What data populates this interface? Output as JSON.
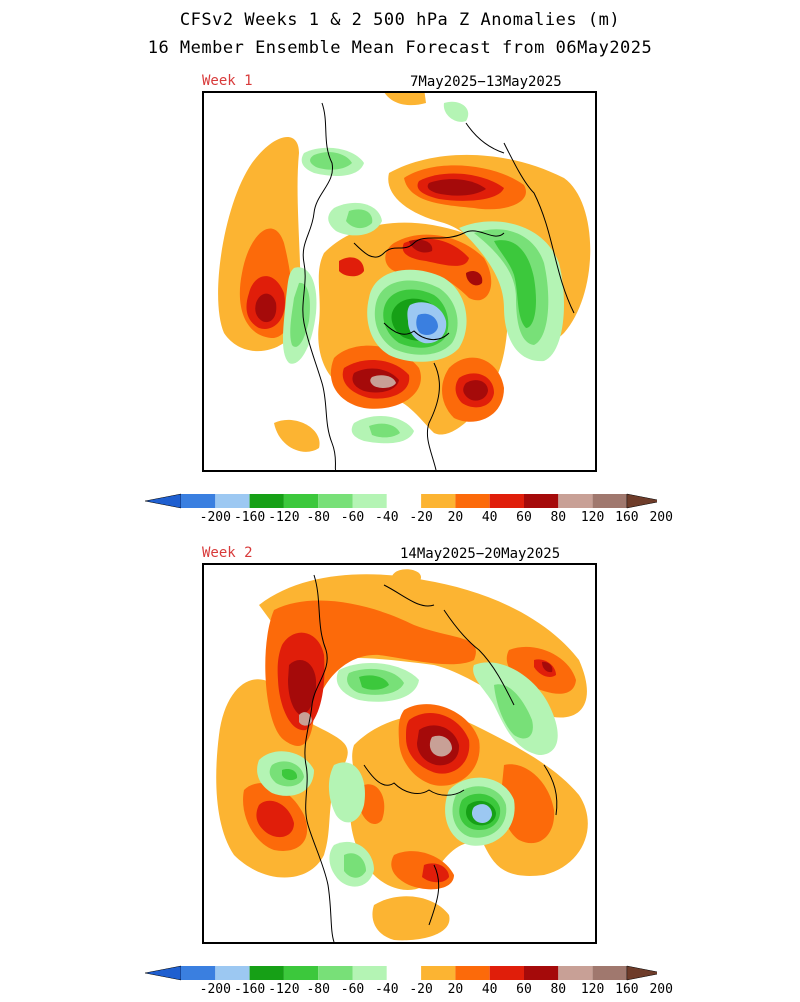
{
  "title_line1": "CFSv2 Weeks 1 & 2 500 hPa Z Anomalies (m)",
  "title_line2": "16 Member Ensemble Mean Forecast from 06May2025",
  "panels": [
    {
      "label": "Week 1",
      "dates": "7May2025−13May2025"
    },
    {
      "label": "Week 2",
      "dates": "14May2025−20May2025"
    }
  ],
  "colorbar": {
    "labels": [
      "-200",
      "-160",
      "-120",
      "-80",
      "-60",
      "-40",
      "-20",
      "20",
      "40",
      "60",
      "80",
      "120",
      "160",
      "200"
    ],
    "colors": [
      "#3a7fe0",
      "#9cc8f2",
      "#16a016",
      "#3cc83c",
      "#78e078",
      "#b4f4b4",
      "#ffffff",
      "#fcb432",
      "#fc6a0a",
      "#e01e0a",
      "#a50a0a",
      "#c8a096",
      "#a0786e"
    ],
    "low_arrow_color": "#1f5fd0",
    "high_arrow_color": "#6e3c2a"
  }
}
